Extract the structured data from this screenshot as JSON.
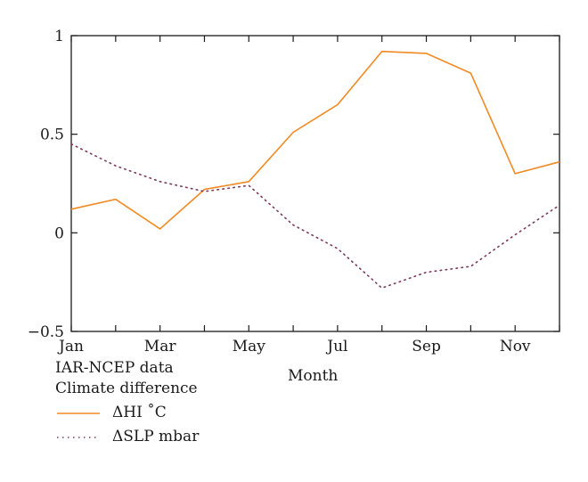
{
  "chart_data": {
    "type": "line",
    "title": "",
    "xlabel": "Month",
    "ylabel": "",
    "x_tick_labels": [
      "Jan",
      "Mar",
      "May",
      "Jul",
      "Sep",
      "Nov"
    ],
    "x_tick_positions": [
      1,
      3,
      5,
      7,
      9,
      11
    ],
    "xlim": [
      1,
      12
    ],
    "y_tick_labels": [
      "1",
      "0.5",
      "0",
      "−0.5"
    ],
    "y_tick_values": [
      1,
      0.5,
      0,
      -0.5
    ],
    "ylim": [
      -0.5,
      1
    ],
    "grid": false,
    "legend_position": "below-left",
    "x": [
      1,
      2,
      3,
      4,
      5,
      6,
      7,
      8,
      9,
      10,
      11,
      12
    ],
    "series": [
      {
        "name": "ΔHI ˚C",
        "style": "solid",
        "color": "#f08a24",
        "values": [
          0.12,
          0.17,
          0.02,
          0.22,
          0.26,
          0.51,
          0.65,
          0.92,
          0.91,
          0.81,
          0.3,
          0.36
        ]
      },
      {
        "name": "ΔSLP mbar",
        "style": "dotted",
        "color": "#7b3a5c",
        "values": [
          0.45,
          0.34,
          0.26,
          0.21,
          0.24,
          0.04,
          -0.08,
          -0.28,
          -0.2,
          -0.17,
          -0.01,
          0.14
        ]
      }
    ],
    "annotations": [
      "IAR-NCEP data",
      "Climate difference"
    ]
  }
}
